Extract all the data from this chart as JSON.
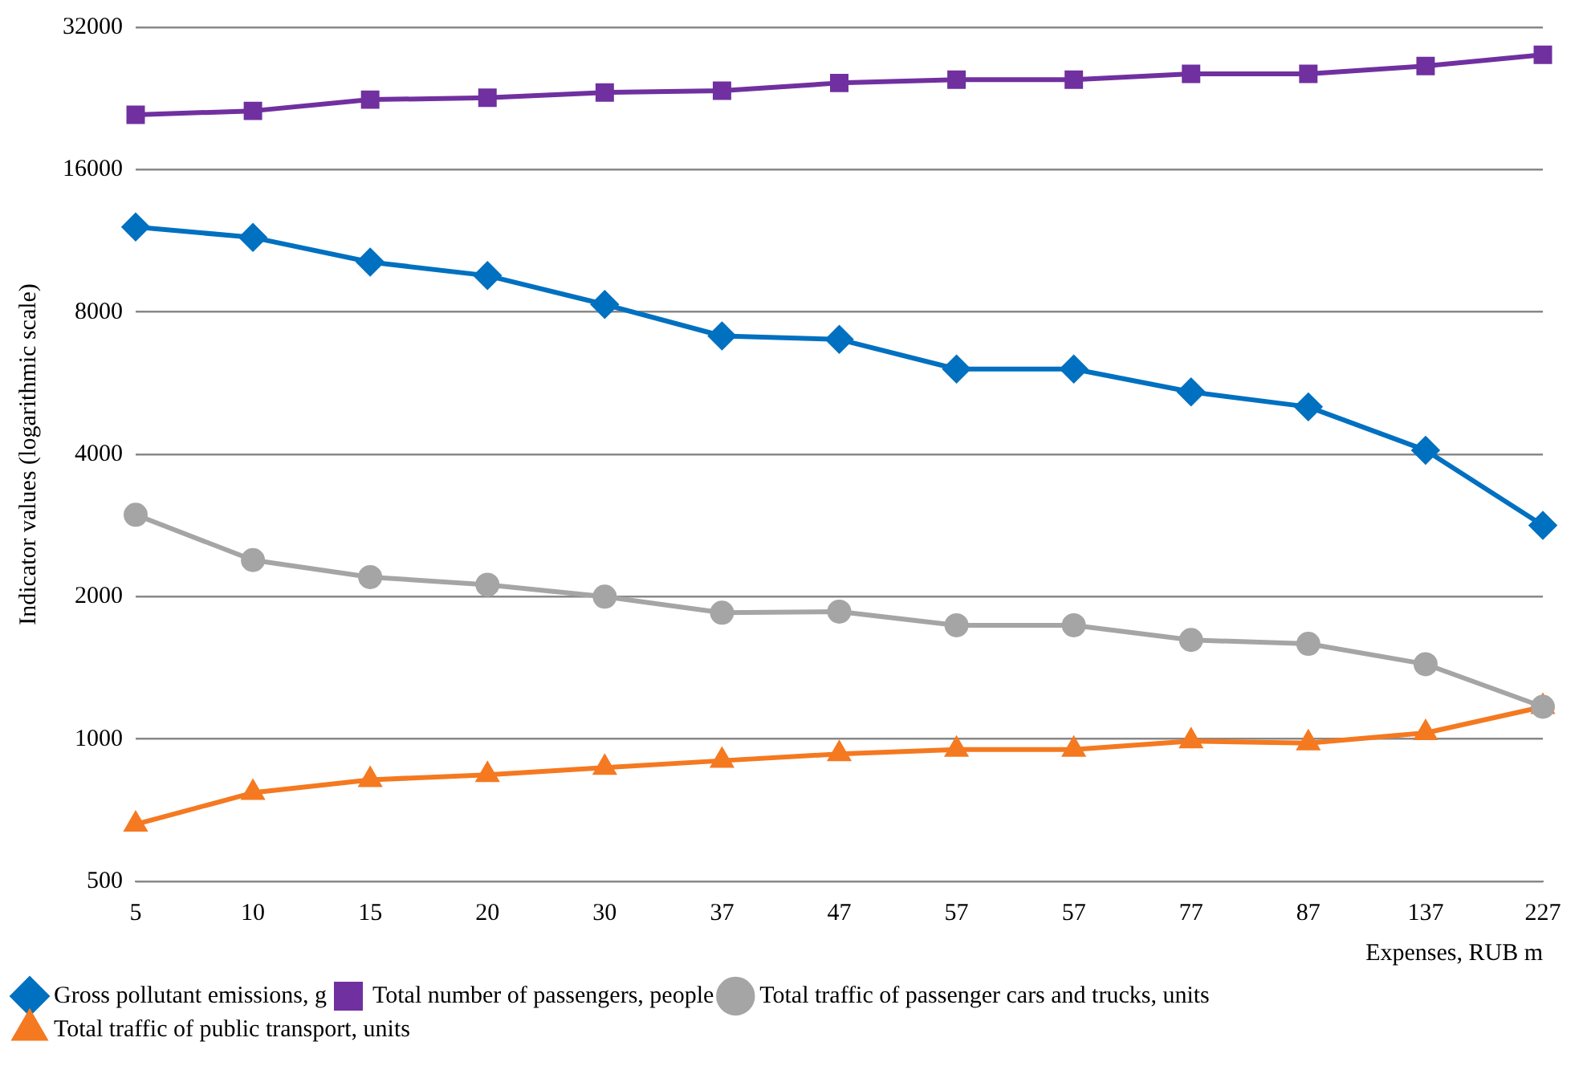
{
  "chart_data": {
    "type": "line",
    "ylabel": "Indicator values (logarithmic scale)",
    "xlabel": "Expenses, RUB m",
    "categories": [
      "5",
      "10",
      "15",
      "20",
      "30",
      "37",
      "47",
      "57",
      "57",
      "77",
      "87",
      "137",
      "227"
    ],
    "log": true,
    "ylim": [
      500,
      32000
    ],
    "yticks": [
      500,
      1000,
      2000,
      4000,
      8000,
      16000,
      32000
    ],
    "grid": "y",
    "legend": "bottom left",
    "line_style": "solid",
    "series": [
      {
        "name": "Total traffic of public transport, units",
        "color": "#f47920",
        "marker": "triangle",
        "values": [
          660,
          770,
          820,
          840,
          870,
          900,
          930,
          950,
          950,
          990,
          980,
          1030,
          1170
        ]
      },
      {
        "name": "Total traffic of passenger cars and trucks, units",
        "color": "#a5a5a5",
        "marker": "circle",
        "values": [
          2980,
          2390,
          2200,
          2120,
          2000,
          1850,
          1860,
          1740,
          1740,
          1620,
          1590,
          1440,
          1170
        ]
      },
      {
        "name": "Total number of passengers, people",
        "color": "#7030a0",
        "marker": "square",
        "values": [
          20900,
          21300,
          22500,
          22700,
          23300,
          23500,
          24400,
          24800,
          24800,
          25500,
          25500,
          26500,
          28000
        ]
      },
      {
        "name": "Gross pollutant emissions, g",
        "color": "#0070c0",
        "marker": "diamond",
        "values": [
          12100,
          11500,
          10200,
          9550,
          8300,
          7120,
          7000,
          6060,
          6060,
          5420,
          5040,
          4080,
          2830
        ]
      }
    ]
  }
}
